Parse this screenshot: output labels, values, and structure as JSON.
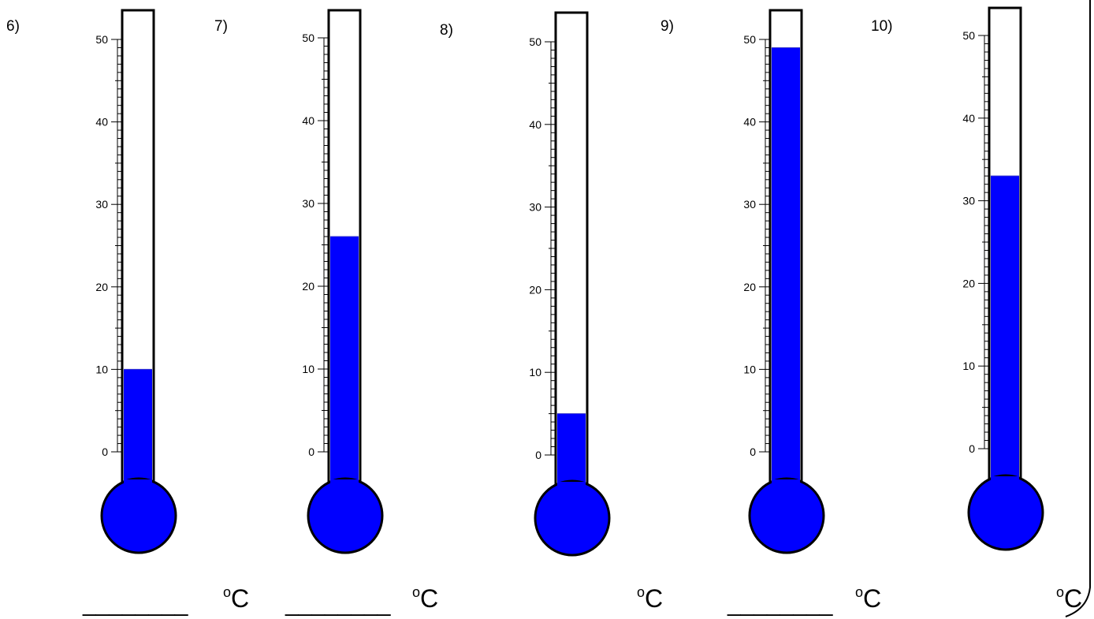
{
  "scale": {
    "min": 0,
    "max": 50,
    "major_step": 10,
    "minor_step": 1,
    "tick_labels": [
      "0",
      "10",
      "20",
      "30",
      "40",
      "50"
    ]
  },
  "colors": {
    "mercury": "#0000ff",
    "tube_outline": "#000000",
    "tube_fill": "#ffffff"
  },
  "thermometers": [
    {
      "label": "6)",
      "reading": 10,
      "blank": "________",
      "unit_degree": "o",
      "unit_letter": "C"
    },
    {
      "label": "7)",
      "reading": 26,
      "blank": "________",
      "unit_degree": "o",
      "unit_letter": "C"
    },
    {
      "label": "8)",
      "reading": 5,
      "blank": "",
      "unit_degree": "o",
      "unit_letter": "C"
    },
    {
      "label": "9)",
      "reading": 49,
      "blank": "________",
      "unit_degree": "o",
      "unit_letter": "C"
    },
    {
      "label": "10)",
      "reading": 33,
      "blank": "",
      "unit_degree": "o",
      "unit_letter": "C"
    }
  ]
}
